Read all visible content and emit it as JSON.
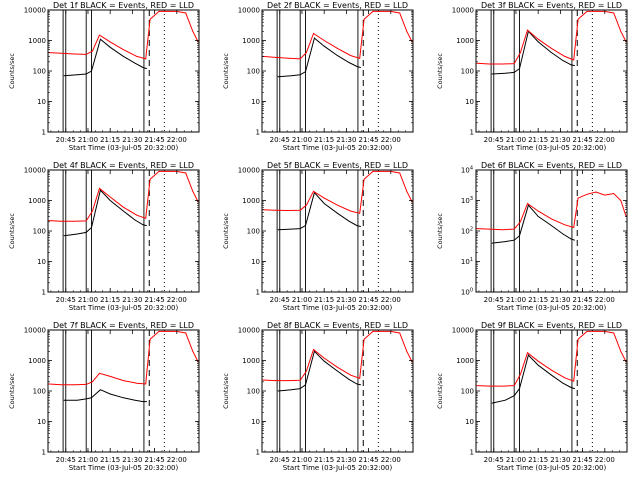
{
  "chart_data": [
    {
      "type": "line",
      "title": "Det 1f BLACK = Events, RED = LLD",
      "xlabel": "Start Time (03-Jul-05 20:32:00)",
      "ylabel": "Counts/sec",
      "ylim": [
        1,
        10000
      ],
      "yscale": "log",
      "ytick_style": "plain",
      "xticks": [
        "20:45",
        "21:00",
        "21:15",
        "21:30",
        "21:45",
        "22:00"
      ],
      "xlim": [
        20.55,
        22.25
      ],
      "solid_vlines": [
        20.72,
        20.75,
        20.98,
        21.04,
        21.63
      ],
      "dashed_vlines": [
        21.69
      ],
      "dotted_vlines": [
        21.86
      ],
      "series": [
        {
          "color": "#000000",
          "x": [
            20.73,
            20.88,
            20.98,
            21.04,
            21.14,
            21.25,
            21.4,
            21.53,
            21.62,
            21.66
          ],
          "values": [
            70,
            75,
            80,
            100,
            1100,
            600,
            300,
            180,
            130,
            120
          ]
        },
        {
          "color": "#ff0000",
          "x": [
            20.56,
            20.7,
            20.85,
            20.98,
            21.05,
            21.13,
            21.25,
            21.4,
            21.55,
            21.65,
            21.7,
            21.8,
            22.0,
            22.1,
            22.18,
            22.24
          ],
          "values": [
            400,
            380,
            360,
            350,
            450,
            1500,
            900,
            500,
            300,
            250,
            5000,
            9000,
            9000,
            8000,
            2000,
            900
          ]
        }
      ]
    },
    {
      "type": "line",
      "title": "Det 2f BLACK = Events, RED = LLD",
      "xlabel": "Start Time (03-Jul-05 20:32:00)",
      "ylabel": "Counts/sec",
      "ylim": [
        1,
        10000
      ],
      "yscale": "log",
      "ytick_style": "plain",
      "xticks": [
        "20:45",
        "21:00",
        "21:15",
        "21:30",
        "21:45",
        "22:00"
      ],
      "xlim": [
        20.55,
        22.25
      ],
      "solid_vlines": [
        20.72,
        20.75,
        20.98,
        21.04,
        21.63
      ],
      "dashed_vlines": [
        21.69
      ],
      "dotted_vlines": [
        21.86
      ],
      "series": [
        {
          "color": "#000000",
          "x": [
            20.73,
            20.88,
            20.98,
            21.04,
            21.14,
            21.25,
            21.4,
            21.53,
            21.62,
            21.66
          ],
          "values": [
            65,
            70,
            75,
            95,
            1200,
            650,
            320,
            190,
            140,
            130
          ]
        },
        {
          "color": "#ff0000",
          "x": [
            20.56,
            20.7,
            20.85,
            20.98,
            21.05,
            21.13,
            21.25,
            21.4,
            21.55,
            21.65,
            21.7,
            21.8,
            22.0,
            22.1,
            22.18,
            22.24
          ],
          "values": [
            300,
            280,
            260,
            250,
            400,
            1700,
            1000,
            550,
            320,
            260,
            5000,
            9000,
            9000,
            8000,
            2000,
            900
          ]
        }
      ]
    },
    {
      "type": "line",
      "title": "Det 3f BLACK = Events, RED = LLD",
      "xlabel": "Start Time (03-Jul-05 20:32:00)",
      "ylabel": "Counts/sec",
      "ylim": [
        1,
        10000
      ],
      "yscale": "log",
      "ytick_style": "plain",
      "xticks": [
        "20:45",
        "21:00",
        "21:15",
        "21:30",
        "21:45",
        "22:00"
      ],
      "xlim": [
        20.55,
        22.25
      ],
      "solid_vlines": [
        20.72,
        20.75,
        20.98,
        21.04,
        21.63
      ],
      "dashed_vlines": [
        21.69
      ],
      "dotted_vlines": [
        21.86
      ],
      "series": [
        {
          "color": "#000000",
          "x": [
            20.73,
            20.88,
            20.98,
            21.04,
            21.14,
            21.25,
            21.4,
            21.53,
            21.62,
            21.66
          ],
          "values": [
            80,
            85,
            90,
            120,
            2000,
            900,
            400,
            220,
            160,
            150
          ]
        },
        {
          "color": "#ff0000",
          "x": [
            20.56,
            20.7,
            20.85,
            20.98,
            21.05,
            21.13,
            21.25,
            21.4,
            21.55,
            21.65,
            21.7,
            21.8,
            22.0,
            22.1,
            22.18,
            22.24
          ],
          "values": [
            180,
            170,
            170,
            175,
            400,
            2200,
            1100,
            550,
            300,
            230,
            5000,
            9000,
            9000,
            8000,
            2000,
            900
          ]
        }
      ]
    },
    {
      "type": "line",
      "title": "Det 4f BLACK = Events, RED = LLD",
      "xlabel": "Start Time (03-Jul-05 20:32:00)",
      "ylabel": "Counts/sec",
      "ylim": [
        1,
        10000
      ],
      "yscale": "log",
      "ytick_style": "plain",
      "xticks": [
        "20:45",
        "21:00",
        "21:15",
        "21:30",
        "21:45",
        "22:00"
      ],
      "xlim": [
        20.55,
        22.25
      ],
      "solid_vlines": [
        20.72,
        20.75,
        20.98,
        21.04,
        21.63
      ],
      "dashed_vlines": [
        21.69
      ],
      "dotted_vlines": [
        21.86
      ],
      "series": [
        {
          "color": "#000000",
          "x": [
            20.73,
            20.88,
            20.98,
            21.04,
            21.14,
            21.25,
            21.4,
            21.53,
            21.62,
            21.66
          ],
          "values": [
            70,
            80,
            90,
            130,
            2200,
            1000,
            450,
            230,
            160,
            150
          ]
        },
        {
          "color": "#ff0000",
          "x": [
            20.56,
            20.7,
            20.85,
            20.98,
            21.05,
            21.13,
            21.25,
            21.4,
            21.55,
            21.65,
            21.7,
            21.8,
            22.0,
            22.1,
            22.18,
            22.24
          ],
          "values": [
            220,
            210,
            210,
            215,
            450,
            2500,
            1300,
            600,
            330,
            260,
            5000,
            9000,
            9000,
            8000,
            2000,
            900
          ]
        }
      ]
    },
    {
      "type": "line",
      "title": "Det 5f BLACK = Events, RED = LLD",
      "xlabel": "Start Time (03-Jul-05 20:32:00)",
      "ylabel": "Counts/sec",
      "ylim": [
        1,
        10000
      ],
      "yscale": "log",
      "ytick_style": "plain",
      "xticks": [
        "20:45",
        "21:00",
        "21:15",
        "21:30",
        "21:45",
        "22:00"
      ],
      "xlim": [
        20.55,
        22.25
      ],
      "solid_vlines": [
        20.72,
        20.75,
        20.98,
        21.04,
        21.63
      ],
      "dashed_vlines": [
        21.69
      ],
      "dotted_vlines": [
        21.86
      ],
      "series": [
        {
          "color": "#000000",
          "x": [
            20.73,
            20.88,
            20.98,
            21.04,
            21.14,
            21.25,
            21.4,
            21.53,
            21.62,
            21.66
          ],
          "values": [
            110,
            115,
            120,
            150,
            1800,
            800,
            380,
            210,
            150,
            140
          ]
        },
        {
          "color": "#ff0000",
          "x": [
            20.56,
            20.7,
            20.85,
            20.98,
            21.05,
            21.13,
            21.25,
            21.4,
            21.55,
            21.65,
            21.7,
            21.8,
            22.0,
            22.1,
            22.18,
            22.24
          ],
          "values": [
            500,
            480,
            470,
            480,
            700,
            2000,
            1200,
            700,
            450,
            380,
            5000,
            9000,
            9000,
            8000,
            2000,
            900
          ]
        }
      ]
    },
    {
      "type": "line",
      "title": "Det 6f BLACK = Events, RED = LLD",
      "xlabel": "Start Time (03-Jul-05 20:32:00)",
      "ylabel": "Counts/sec",
      "ylim": [
        1,
        10000
      ],
      "yscale": "log",
      "ytick_style": "exponent",
      "xticks": [
        "20:45",
        "21:00",
        "21:15",
        "21:30",
        "21:45",
        "22:00"
      ],
      "xlim": [
        20.55,
        22.25
      ],
      "solid_vlines": [
        20.72,
        20.75,
        20.98,
        21.04,
        21.63
      ],
      "dashed_vlines": [
        21.69
      ],
      "dotted_vlines": [
        21.86
      ],
      "series": [
        {
          "color": "#000000",
          "x": [
            20.73,
            20.88,
            20.98,
            21.04,
            21.14,
            21.25,
            21.4,
            21.53,
            21.62,
            21.66
          ],
          "values": [
            40,
            45,
            50,
            70,
            700,
            300,
            150,
            80,
            55,
            50
          ]
        },
        {
          "color": "#ff0000",
          "x": [
            20.56,
            20.7,
            20.85,
            20.98,
            21.05,
            21.13,
            21.25,
            21.4,
            21.55,
            21.65,
            21.7,
            21.8,
            21.9,
            22.0,
            22.1,
            22.18,
            22.24
          ],
          "values": [
            120,
            115,
            110,
            115,
            200,
            800,
            450,
            250,
            160,
            130,
            1200,
            1600,
            1900,
            1500,
            1700,
            1000,
            300
          ]
        }
      ]
    },
    {
      "type": "line",
      "title": "Det 7f BLACK = Events, RED = LLD",
      "xlabel": "Start Time (03-Jul-05 20:32:00)",
      "ylabel": "Counts/sec",
      "ylim": [
        1,
        10000
      ],
      "yscale": "log",
      "ytick_style": "plain",
      "xticks": [
        "20:45",
        "21:00",
        "21:15",
        "21:30",
        "21:45",
        "22:00"
      ],
      "xlim": [
        20.55,
        22.25
      ],
      "solid_vlines": [
        20.72,
        20.75,
        20.98,
        21.04,
        21.63
      ],
      "dashed_vlines": [
        21.69
      ],
      "dotted_vlines": [
        21.86
      ],
      "series": [
        {
          "color": "#000000",
          "x": [
            20.73,
            20.88,
            20.98,
            21.04,
            21.14,
            21.25,
            21.4,
            21.53,
            21.62,
            21.66
          ],
          "values": [
            50,
            50,
            55,
            60,
            110,
            80,
            60,
            50,
            45,
            45
          ]
        },
        {
          "color": "#ff0000",
          "x": [
            20.56,
            20.7,
            20.85,
            20.98,
            21.05,
            21.13,
            21.25,
            21.4,
            21.55,
            21.65,
            21.7,
            21.8,
            22.0,
            22.1,
            22.18,
            22.24
          ],
          "values": [
            170,
            160,
            160,
            165,
            200,
            380,
            300,
            220,
            180,
            170,
            5000,
            9000,
            9000,
            8000,
            2000,
            900
          ]
        }
      ]
    },
    {
      "type": "line",
      "title": "Det 8f BLACK = Events, RED = LLD",
      "xlabel": "Start Time (03-Jul-05 20:32:00)",
      "ylabel": "Counts/sec",
      "ylim": [
        1,
        10000
      ],
      "yscale": "log",
      "ytick_style": "plain",
      "xticks": [
        "20:45",
        "21:00",
        "21:15",
        "21:30",
        "21:45",
        "22:00"
      ],
      "xlim": [
        20.55,
        22.25
      ],
      "solid_vlines": [
        20.72,
        20.75,
        20.98,
        21.04,
        21.63
      ],
      "dashed_vlines": [
        21.69
      ],
      "dotted_vlines": [
        21.86
      ],
      "series": [
        {
          "color": "#000000",
          "x": [
            20.73,
            20.88,
            20.98,
            21.04,
            21.14,
            21.25,
            21.4,
            21.53,
            21.62,
            21.66
          ],
          "values": [
            100,
            110,
            120,
            160,
            2000,
            950,
            450,
            240,
            170,
            160
          ]
        },
        {
          "color": "#ff0000",
          "x": [
            20.56,
            20.7,
            20.85,
            20.98,
            21.05,
            21.13,
            21.25,
            21.4,
            21.55,
            21.65,
            21.7,
            21.8,
            22.0,
            22.1,
            22.18,
            22.24
          ],
          "values": [
            230,
            220,
            220,
            225,
            450,
            2300,
            1200,
            600,
            330,
            260,
            5000,
            9000,
            9000,
            8000,
            2000,
            900
          ]
        }
      ]
    },
    {
      "type": "line",
      "title": "Det 9f BLACK = Events, RED = LLD",
      "xlabel": "Start Time (03-Jul-05 20:32:00)",
      "ylabel": "Counts/sec",
      "ylim": [
        1,
        10000
      ],
      "yscale": "log",
      "ytick_style": "plain",
      "xticks": [
        "20:45",
        "21:00",
        "21:15",
        "21:30",
        "21:45",
        "22:00"
      ],
      "xlim": [
        20.55,
        22.25
      ],
      "solid_vlines": [
        20.72,
        20.75,
        20.98,
        21.04,
        21.63
      ],
      "dashed_vlines": [
        21.69
      ],
      "dotted_vlines": [
        21.86
      ],
      "series": [
        {
          "color": "#000000",
          "x": [
            20.73,
            20.88,
            20.98,
            21.04,
            21.14,
            21.25,
            21.4,
            21.53,
            21.62,
            21.66
          ],
          "values": [
            40,
            50,
            70,
            120,
            1500,
            700,
            330,
            180,
            130,
            120
          ]
        },
        {
          "color": "#ff0000",
          "x": [
            20.56,
            20.7,
            20.85,
            20.98,
            21.05,
            21.13,
            21.25,
            21.4,
            21.55,
            21.65,
            21.7,
            21.8,
            22.0,
            22.1,
            22.18,
            22.24
          ],
          "values": [
            150,
            145,
            145,
            150,
            350,
            1800,
            950,
            480,
            270,
            210,
            5000,
            9000,
            9000,
            8000,
            2000,
            900
          ]
        }
      ]
    }
  ]
}
